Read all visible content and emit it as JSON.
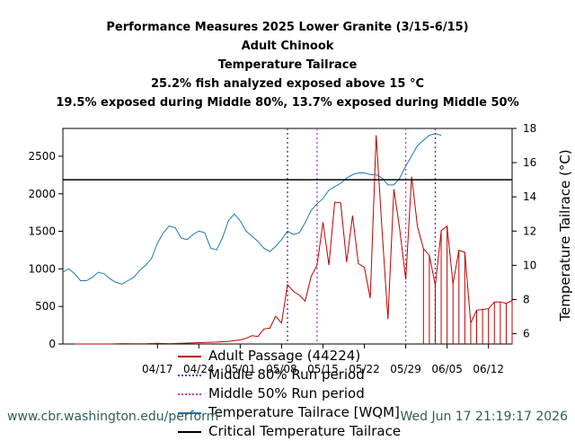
{
  "titles": {
    "line1": "Performance Measures 2025 Lower Granite (3/15-6/15)",
    "line2": "Adult Chinook",
    "line3": "Temperature Tailrace",
    "line4": "25.2% fish analyzed exposed above 15 °C",
    "line5": "19.5% exposed during Middle 80%, 13.7% exposed during Middle 50%"
  },
  "legend": {
    "passage": "Adult Passage (44224)",
    "mid80": "Middle 80% Run period",
    "mid50": "Middle 50% Run period",
    "temp": "Temperature Tailrace [WQM]",
    "critical": "Critical Temperature Tailrace"
  },
  "footer": {
    "url": "www.cbr.washington.edu/perform",
    "timestamp": "Wed Jun 17 21:19:17 2026"
  },
  "colors": {
    "passage": "#c00000",
    "temp": "#1f77b4",
    "run80": "#7030a0",
    "run50": "#c040c0",
    "critical": "#000000"
  },
  "chart_data": {
    "type": "line",
    "x_tick_labels": [
      "04/17",
      "04/24",
      "05/01",
      "05/08",
      "05/15",
      "05/22",
      "05/29",
      "06/05",
      "06/12"
    ],
    "x_tick_days": [
      17,
      24,
      31,
      38,
      45,
      52,
      59,
      66,
      73
    ],
    "x_range_days": [
      1,
      77
    ],
    "y_left": {
      "label": "",
      "ticks": [
        0,
        500,
        1000,
        1500,
        2000,
        2500
      ],
      "range": [
        0,
        2870
      ]
    },
    "y_right": {
      "label": "Temperature Tailrace (°C)",
      "ticks": [
        6,
        8,
        10,
        12,
        14,
        16,
        18
      ],
      "range": [
        5.4,
        18
      ]
    },
    "critical_temperature": 15,
    "middle_80_days": [
      39,
      64
    ],
    "middle_50_days": [
      44,
      59
    ],
    "passage": [
      [
        3,
        0
      ],
      [
        5,
        0
      ],
      [
        7,
        0
      ],
      [
        9,
        0
      ],
      [
        11,
        5
      ],
      [
        13,
        3
      ],
      [
        15,
        2
      ],
      [
        17,
        8
      ],
      [
        19,
        5
      ],
      [
        21,
        10
      ],
      [
        23,
        15
      ],
      [
        25,
        20
      ],
      [
        27,
        25
      ],
      [
        29,
        35
      ],
      [
        31,
        55
      ],
      [
        32,
        75
      ],
      [
        33,
        110
      ],
      [
        34,
        100
      ],
      [
        35,
        200
      ],
      [
        36,
        210
      ],
      [
        37,
        370
      ],
      [
        38,
        280
      ],
      [
        39,
        790
      ],
      [
        40,
        700
      ],
      [
        41,
        650
      ],
      [
        42,
        570
      ],
      [
        43,
        900
      ],
      [
        44,
        1050
      ],
      [
        45,
        1620
      ],
      [
        46,
        1050
      ],
      [
        47,
        1890
      ],
      [
        48,
        1880
      ],
      [
        49,
        1090
      ],
      [
        50,
        1710
      ],
      [
        51,
        1070
      ],
      [
        52,
        1020
      ],
      [
        53,
        610
      ],
      [
        54,
        2780
      ],
      [
        55,
        1500
      ],
      [
        56,
        330
      ],
      [
        57,
        2060
      ],
      [
        58,
        1520
      ],
      [
        59,
        860
      ],
      [
        60,
        2230
      ],
      [
        61,
        1560
      ],
      [
        62,
        1270
      ],
      [
        63,
        1180
      ],
      [
        64,
        780
      ],
      [
        65,
        1510
      ],
      [
        66,
        1570
      ],
      [
        67,
        800
      ],
      [
        68,
        1250
      ],
      [
        69,
        1220
      ],
      [
        70,
        280
      ],
      [
        71,
        450
      ],
      [
        72,
        460
      ],
      [
        73,
        470
      ],
      [
        74,
        560
      ],
      [
        75,
        560
      ],
      [
        76,
        540
      ],
      [
        77,
        580
      ]
    ],
    "temperature": [
      [
        1,
        9.6
      ],
      [
        2,
        9.8
      ],
      [
        3,
        9.5
      ],
      [
        4,
        9.1
      ],
      [
        5,
        9.1
      ],
      [
        6,
        9.3
      ],
      [
        7,
        9.6
      ],
      [
        8,
        9.5
      ],
      [
        9,
        9.2
      ],
      [
        10,
        9.0
      ],
      [
        11,
        8.9
      ],
      [
        12,
        9.1
      ],
      [
        13,
        9.3
      ],
      [
        14,
        9.7
      ],
      [
        15,
        10.0
      ],
      [
        16,
        10.4
      ],
      [
        17,
        11.3
      ],
      [
        18,
        11.9
      ],
      [
        19,
        12.3
      ],
      [
        20,
        12.2
      ],
      [
        21,
        11.6
      ],
      [
        22,
        11.5
      ],
      [
        23,
        11.8
      ],
      [
        24,
        12.0
      ],
      [
        25,
        11.9
      ],
      [
        26,
        11.0
      ],
      [
        27,
        10.9
      ],
      [
        28,
        11.6
      ],
      [
        29,
        12.6
      ],
      [
        30,
        13.0
      ],
      [
        31,
        12.6
      ],
      [
        32,
        12.0
      ],
      [
        33,
        11.7
      ],
      [
        34,
        11.4
      ],
      [
        35,
        11.0
      ],
      [
        36,
        10.8
      ],
      [
        37,
        11.1
      ],
      [
        38,
        11.5
      ],
      [
        39,
        12.0
      ],
      [
        40,
        11.8
      ],
      [
        41,
        11.9
      ],
      [
        42,
        12.5
      ],
      [
        43,
        13.2
      ],
      [
        44,
        13.6
      ],
      [
        45,
        13.9
      ],
      [
        46,
        14.4
      ],
      [
        47,
        14.6
      ],
      [
        48,
        14.8
      ],
      [
        49,
        15.1
      ],
      [
        50,
        15.3
      ],
      [
        51,
        15.4
      ],
      [
        52,
        15.4
      ],
      [
        53,
        15.3
      ],
      [
        54,
        15.3
      ],
      [
        55,
        15.1
      ],
      [
        56,
        14.7
      ],
      [
        57,
        14.7
      ],
      [
        58,
        15.1
      ],
      [
        59,
        15.8
      ],
      [
        60,
        16.4
      ],
      [
        61,
        17.0
      ],
      [
        62,
        17.3
      ],
      [
        63,
        17.6
      ],
      [
        64,
        17.7
      ],
      [
        65,
        17.6
      ]
    ]
  }
}
